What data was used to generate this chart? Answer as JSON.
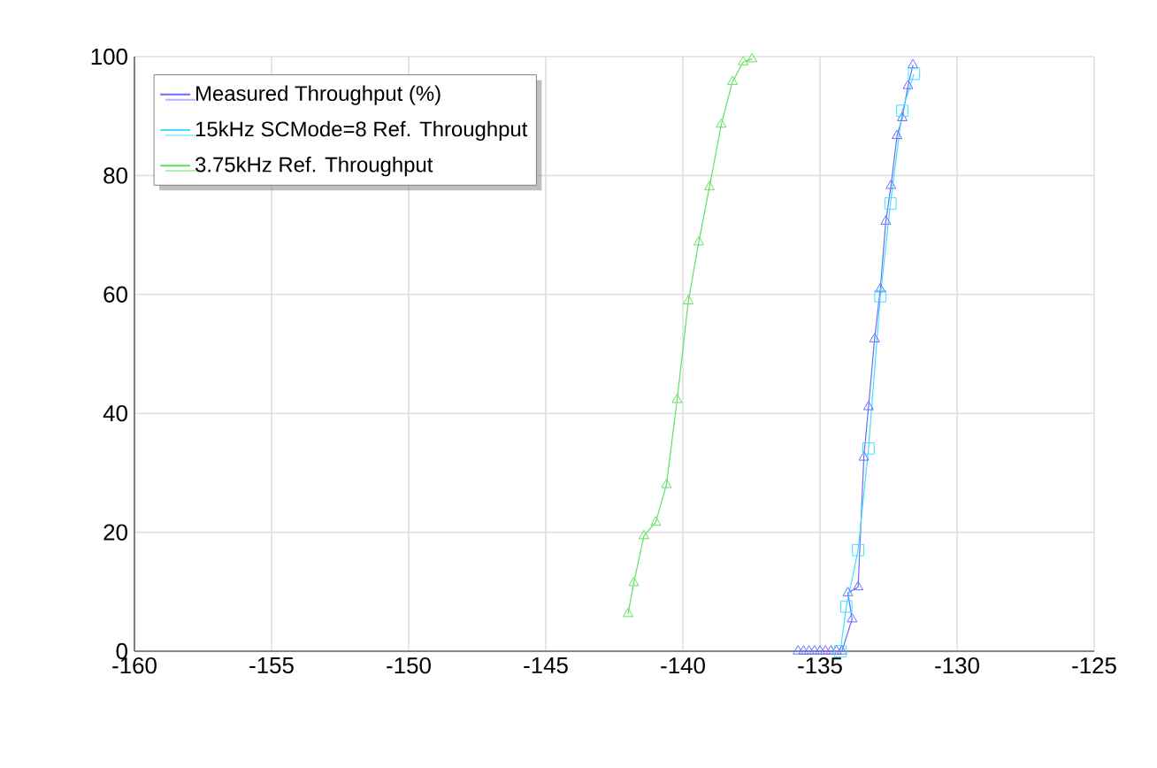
{
  "chart_data": {
    "type": "line",
    "series": [
      {
        "name": "Measured Throughput (%)",
        "color": "#6a6aff",
        "marker": "triangle",
        "x": [
          -135.8,
          -135.6,
          -135.4,
          -135.2,
          -135.0,
          -134.8,
          -134.6,
          -134.4,
          -134.2,
          -133.83,
          -133.98,
          -133.61,
          -133.4,
          -133.23,
          -133.01,
          -132.8,
          -132.6,
          -132.41,
          -132.19,
          -132.0,
          -131.79,
          -131.61
        ],
        "values": [
          0,
          0,
          0,
          0,
          0,
          0,
          0,
          0,
          0,
          5.4,
          9.8,
          10.8,
          32.6,
          41.1,
          52.5,
          60.9,
          72.3,
          78.3,
          86.7,
          89.7,
          95.1,
          98.6
        ]
      },
      {
        "name": "15kHz SCMode=8 Ref. Throughput",
        "color": "#40e0ff",
        "marker": "square",
        "x": [
          -134.26,
          -134.04,
          -133.61,
          -133.23,
          -132.8,
          -132.43,
          -132.0,
          -131.57
        ],
        "values": [
          0,
          7.5,
          17,
          34.1,
          59.7,
          75.3,
          90.9,
          97.1
        ]
      },
      {
        "name": "3.75kHz Ref. Throughput",
        "color": "#60e060",
        "marker": "triangle",
        "x": [
          -142.0,
          -141.79,
          -141.42,
          -140.99,
          -140.6,
          -140.21,
          -139.8,
          -139.42,
          -139.03,
          -138.6,
          -138.19,
          -137.8,
          -137.48
        ],
        "values": [
          6.3,
          11.5,
          19.4,
          21.7,
          28,
          42.3,
          58.9,
          68.8,
          78.1,
          88.6,
          95.8,
          99.1,
          99.6
        ]
      }
    ],
    "xlim": [
      -160,
      -125
    ],
    "xticks": [
      -160,
      -155,
      -150,
      -145,
      -140,
      -135,
      -130,
      -125
    ],
    "ylim": [
      0,
      100
    ],
    "yticks": [
      0,
      20,
      40,
      60,
      80,
      100
    ],
    "grid": true,
    "legend": "top left",
    "line_style": "solid"
  }
}
